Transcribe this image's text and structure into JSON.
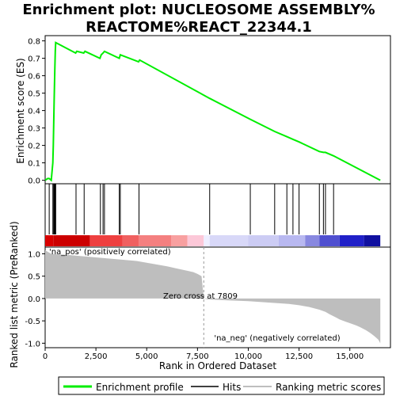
{
  "title_line1": "Enrichment plot: NUCLEOSOME ASSEMBLY%",
  "title_line2": "REACTOME%REACT_22344.1",
  "chart_data": {
    "type": "line",
    "top_panel": {
      "ylabel": "Enrichment score (ES)",
      "ylim": [
        -0.02,
        0.83
      ],
      "yticks": [
        0.0,
        0.1,
        0.2,
        0.3,
        0.4,
        0.5,
        0.6,
        0.7,
        0.8
      ],
      "ytick_labels": [
        "0.0",
        "0.1",
        "0.2",
        "0.3",
        "0.4",
        "0.5",
        "0.6",
        "0.7",
        "0.8"
      ],
      "series": [
        {
          "name": "Enrichment profile",
          "color": "#00ee00",
          "x": [
            0,
            130,
            200,
            300,
            380,
            400,
            420,
            440,
            460,
            480,
            500,
            520,
            1500,
            1560,
            1900,
            1960,
            2700,
            2760,
            2850,
            2920,
            3650,
            3700,
            4600,
            4650,
            8100,
            10100,
            11300,
            11900,
            12200,
            12500,
            13500,
            13700,
            13800,
            14200,
            16500
          ],
          "y": [
            0.0,
            0.01,
            0.01,
            0.0,
            0.1,
            0.2,
            0.32,
            0.44,
            0.55,
            0.65,
            0.74,
            0.79,
            0.73,
            0.74,
            0.73,
            0.74,
            0.7,
            0.72,
            0.73,
            0.74,
            0.7,
            0.72,
            0.68,
            0.69,
            0.47,
            0.35,
            0.28,
            0.25,
            0.235,
            0.22,
            0.165,
            0.16,
            0.16,
            0.14,
            0.0
          ]
        }
      ]
    },
    "hits_panel": {
      "series_name": "Hits",
      "hit_ranks": [
        200,
        380,
        420,
        440,
        460,
        480,
        500,
        520,
        1520,
        1920,
        2720,
        2850,
        2920,
        3650,
        3700,
        4620,
        8100,
        10100,
        11300,
        11900,
        12200,
        12500,
        13500,
        13700,
        13800,
        14200
      ]
    },
    "bottom_panel": {
      "ylabel": "Ranked list metric (PreRanked)",
      "ylim": [
        -1.1,
        1.15
      ],
      "yticks": [
        1.0,
        0.5,
        0.0,
        -0.5,
        -1.0
      ],
      "ytick_labels": [
        "1.0",
        "0.5",
        "0.0",
        "-0.5",
        "-1.0"
      ],
      "series": [
        {
          "name": "Ranking metric scores",
          "color": "#bebebe",
          "x": [
            0,
            300,
            500,
            1000,
            1500,
            2000,
            2500,
            3000,
            3500,
            4000,
            4500,
            5000,
            5500,
            6000,
            6500,
            7000,
            7300,
            7500,
            7700,
            7809,
            8000,
            9000,
            10000,
            11000,
            12000,
            12500,
            13000,
            13500,
            13800,
            14000,
            14300,
            14500,
            14800,
            15000,
            15300,
            15500,
            15800,
            16000,
            16200,
            16400,
            16500
          ],
          "y": [
            1.08,
            1.0,
            0.99,
            0.98,
            0.96,
            0.94,
            0.92,
            0.9,
            0.88,
            0.86,
            0.84,
            0.8,
            0.76,
            0.72,
            0.67,
            0.62,
            0.59,
            0.55,
            0.5,
            0.0,
            -0.02,
            -0.04,
            -0.06,
            -0.09,
            -0.12,
            -0.15,
            -0.19,
            -0.25,
            -0.3,
            -0.35,
            -0.42,
            -0.47,
            -0.52,
            -0.55,
            -0.6,
            -0.64,
            -0.71,
            -0.77,
            -0.84,
            -0.92,
            -1.0
          ]
        }
      ],
      "zero_cross_label": "Zero cross at 7809",
      "zero_cross_rank": 7809,
      "pos_label": "'na_pos' (positively correlated)",
      "neg_label": "'na_neg' (negatively correlated)",
      "pos_color": "#cc0000",
      "neg_color": "#0000cc"
    },
    "xlabel": "Rank in Ordered Dataset",
    "xlim": [
      0,
      17000
    ],
    "xticks": [
      0,
      2500,
      5000,
      7500,
      10000,
      12500,
      15000
    ],
    "xtick_labels": [
      "0",
      "2,500",
      "5,000",
      "7,500",
      "10,000",
      "12,500",
      "15,000"
    ],
    "heat_segments": [
      {
        "end": 400,
        "color": "#d80000"
      },
      {
        "end": 2200,
        "color": "#cc0000"
      },
      {
        "end": 3800,
        "color": "#ee4040"
      },
      {
        "end": 4600,
        "color": "#f06060"
      },
      {
        "end": 6200,
        "color": "#f48080"
      },
      {
        "end": 7000,
        "color": "#f8a0a0"
      },
      {
        "end": 7809,
        "color": "#fcc8d8"
      },
      {
        "end": 8100,
        "color": "#eeeeff"
      },
      {
        "end": 10000,
        "color": "#d8d8f8"
      },
      {
        "end": 11500,
        "color": "#ccccf4"
      },
      {
        "end": 12800,
        "color": "#b8b8f0"
      },
      {
        "end": 13500,
        "color": "#8888e0"
      },
      {
        "end": 14500,
        "color": "#5050d0"
      },
      {
        "end": 15700,
        "color": "#2020c8"
      },
      {
        "end": 16500,
        "color": "#1010a0"
      }
    ],
    "legend": {
      "placement": "bottom",
      "items": [
        "Enrichment profile",
        "Hits",
        "Ranking metric scores"
      ]
    }
  }
}
